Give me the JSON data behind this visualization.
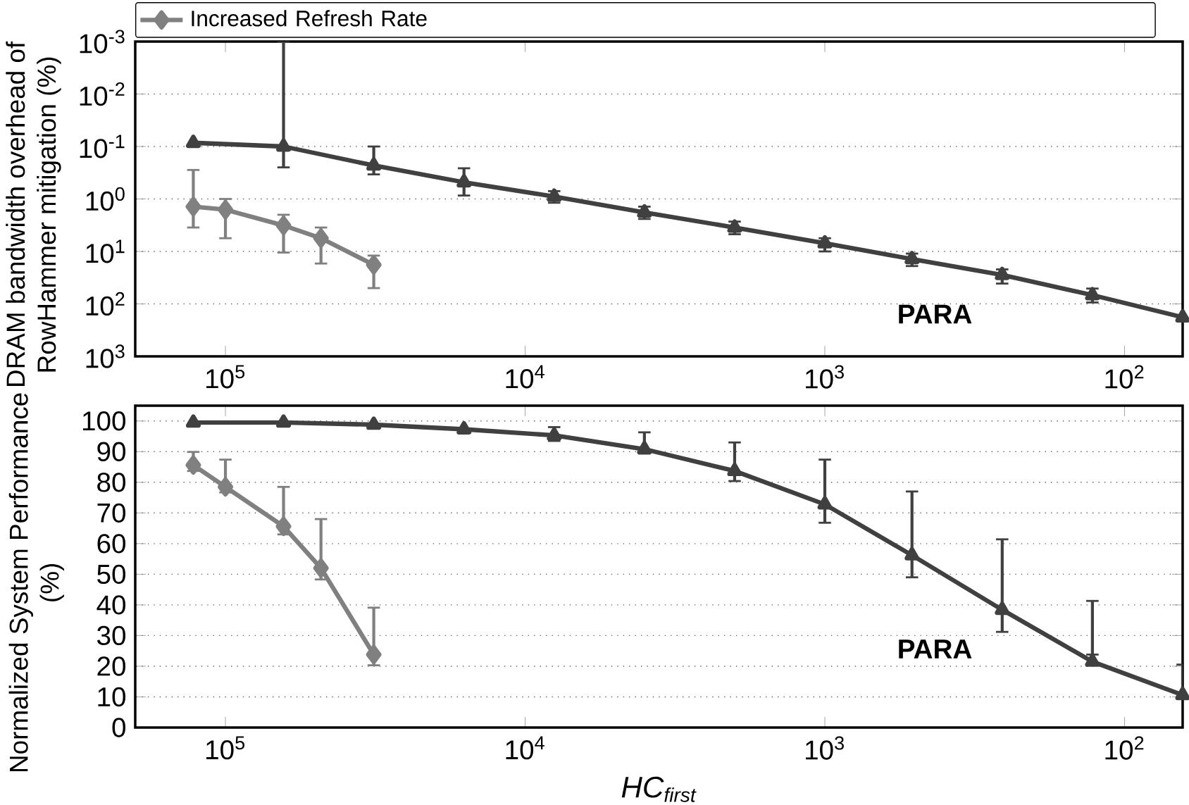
{
  "chart_data": [
    {
      "type": "line",
      "ylabel": "DRAM bandwidth overhead of RowHammer mitigation (%)",
      "log": "xy",
      "grid": "y",
      "legend": "top",
      "xlim": [
        200000,
        64
      ],
      "xticks": [
        {
          "value": 100000,
          "label": "10$^{5}$"
        },
        {
          "value": 10000,
          "label": "10$^{4}$"
        },
        {
          "value": 1000,
          "label": "10$^{3}$"
        },
        {
          "value": 100,
          "label": "10$^{2}$"
        }
      ],
      "ylim": [
        1000,
        0.001
      ],
      "yticks": [
        {
          "value": 0.001,
          "label": "10$^{-3}$"
        },
        {
          "value": 0.01,
          "label": "10$^{-2}$"
        },
        {
          "value": 0.1,
          "label": "10$^{-1}$"
        },
        {
          "value": 1,
          "label": "10$^{0}$"
        },
        {
          "value": 10,
          "label": "10$^{1}$"
        },
        {
          "value": 100,
          "label": "10$^{2}$"
        },
        {
          "value": 1000,
          "label": "10$^{3}$"
        }
      ],
      "series": [
        {
          "name": "PARA",
          "color": "#404040",
          "marker": "triangle",
          "x": [
            128000,
            64000,
            32000,
            16000,
            8000,
            4000,
            2000,
            1000,
            512,
            256,
            128,
            64
          ],
          "values": [
            0.085,
            0.1,
            0.23,
            0.48,
            0.9,
            1.8,
            3.5,
            7,
            14,
            28,
            68,
            180
          ],
          "errors": [
            null,
            [
              0.001,
              0.25
            ],
            [
              0.1,
              0.34
            ],
            [
              0.26,
              0.86
            ],
            [
              0.71,
              1.18
            ],
            [
              1.4,
              2.4
            ],
            [
              2.7,
              4.7
            ],
            [
              5.6,
              10
            ],
            [
              11,
              19
            ],
            [
              22,
              41
            ],
            [
              51,
              94
            ],
            null
          ]
        },
        {
          "name": "Increased Refresh Rate",
          "color": "#808080",
          "marker": "diamond",
          "x": [
            128000,
            100000,
            64000,
            48000,
            32000
          ],
          "values": [
            1.4,
            1.6,
            3.2,
            5.6,
            18
          ],
          "errors": [
            [
              0.28,
              3.5
            ],
            [
              1,
              5.6
            ],
            [
              2,
              10.5
            ],
            [
              3.5,
              17
            ],
            [
              12,
              50
            ]
          ]
        }
      ]
    },
    {
      "type": "line",
      "ylabel": "Normalized System Performance (%)",
      "xlabel": "HC$_{first}$",
      "log": "x",
      "grid": "y",
      "xlim": [
        200000,
        64
      ],
      "xticks": [
        {
          "value": 100000,
          "label": "10$^{5}$"
        },
        {
          "value": 10000,
          "label": "10$^{4}$"
        },
        {
          "value": 1000,
          "label": "10$^{3}$"
        },
        {
          "value": 100,
          "label": "10$^{2}$"
        }
      ],
      "ylim": [
        0,
        105
      ],
      "yticks": [
        0,
        10,
        20,
        30,
        40,
        50,
        60,
        70,
        80,
        90,
        100
      ],
      "series": [
        {
          "name": "PARA",
          "color": "#404040",
          "marker": "triangle",
          "x": [
            128000,
            64000,
            32000,
            16000,
            8000,
            4000,
            2000,
            1000,
            512,
            256,
            128,
            64
          ],
          "values": [
            99.5,
            99.5,
            98.8,
            97.3,
            95.3,
            90.8,
            83.7,
            72.8,
            56.2,
            38.4,
            21.5,
            10.6
          ],
          "errors": [
            null,
            null,
            null,
            null,
            [
              93.5,
              98
            ],
            [
              89.4,
              96.3
            ],
            [
              80.4,
              93
            ],
            [
              66.8,
              87.4
            ],
            [
              49,
              77
            ],
            [
              31.2,
              61.4
            ],
            [
              23.8,
              41.3
            ],
            [
              9.4,
              20.5
            ]
          ]
        },
        {
          "color": "#808080",
          "marker": "diamond",
          "x": [
            128000,
            100000,
            64000,
            48000,
            32000
          ],
          "values": [
            85.6,
            78.5,
            65.6,
            52,
            23.8
          ],
          "errors": [
            [
              83.7,
              89.9
            ],
            [
              76.7,
              87.4
            ],
            [
              63,
              78.5
            ],
            [
              48.3,
              68
            ],
            [
              20.3,
              39.1
            ]
          ]
        }
      ]
    }
  ]
}
